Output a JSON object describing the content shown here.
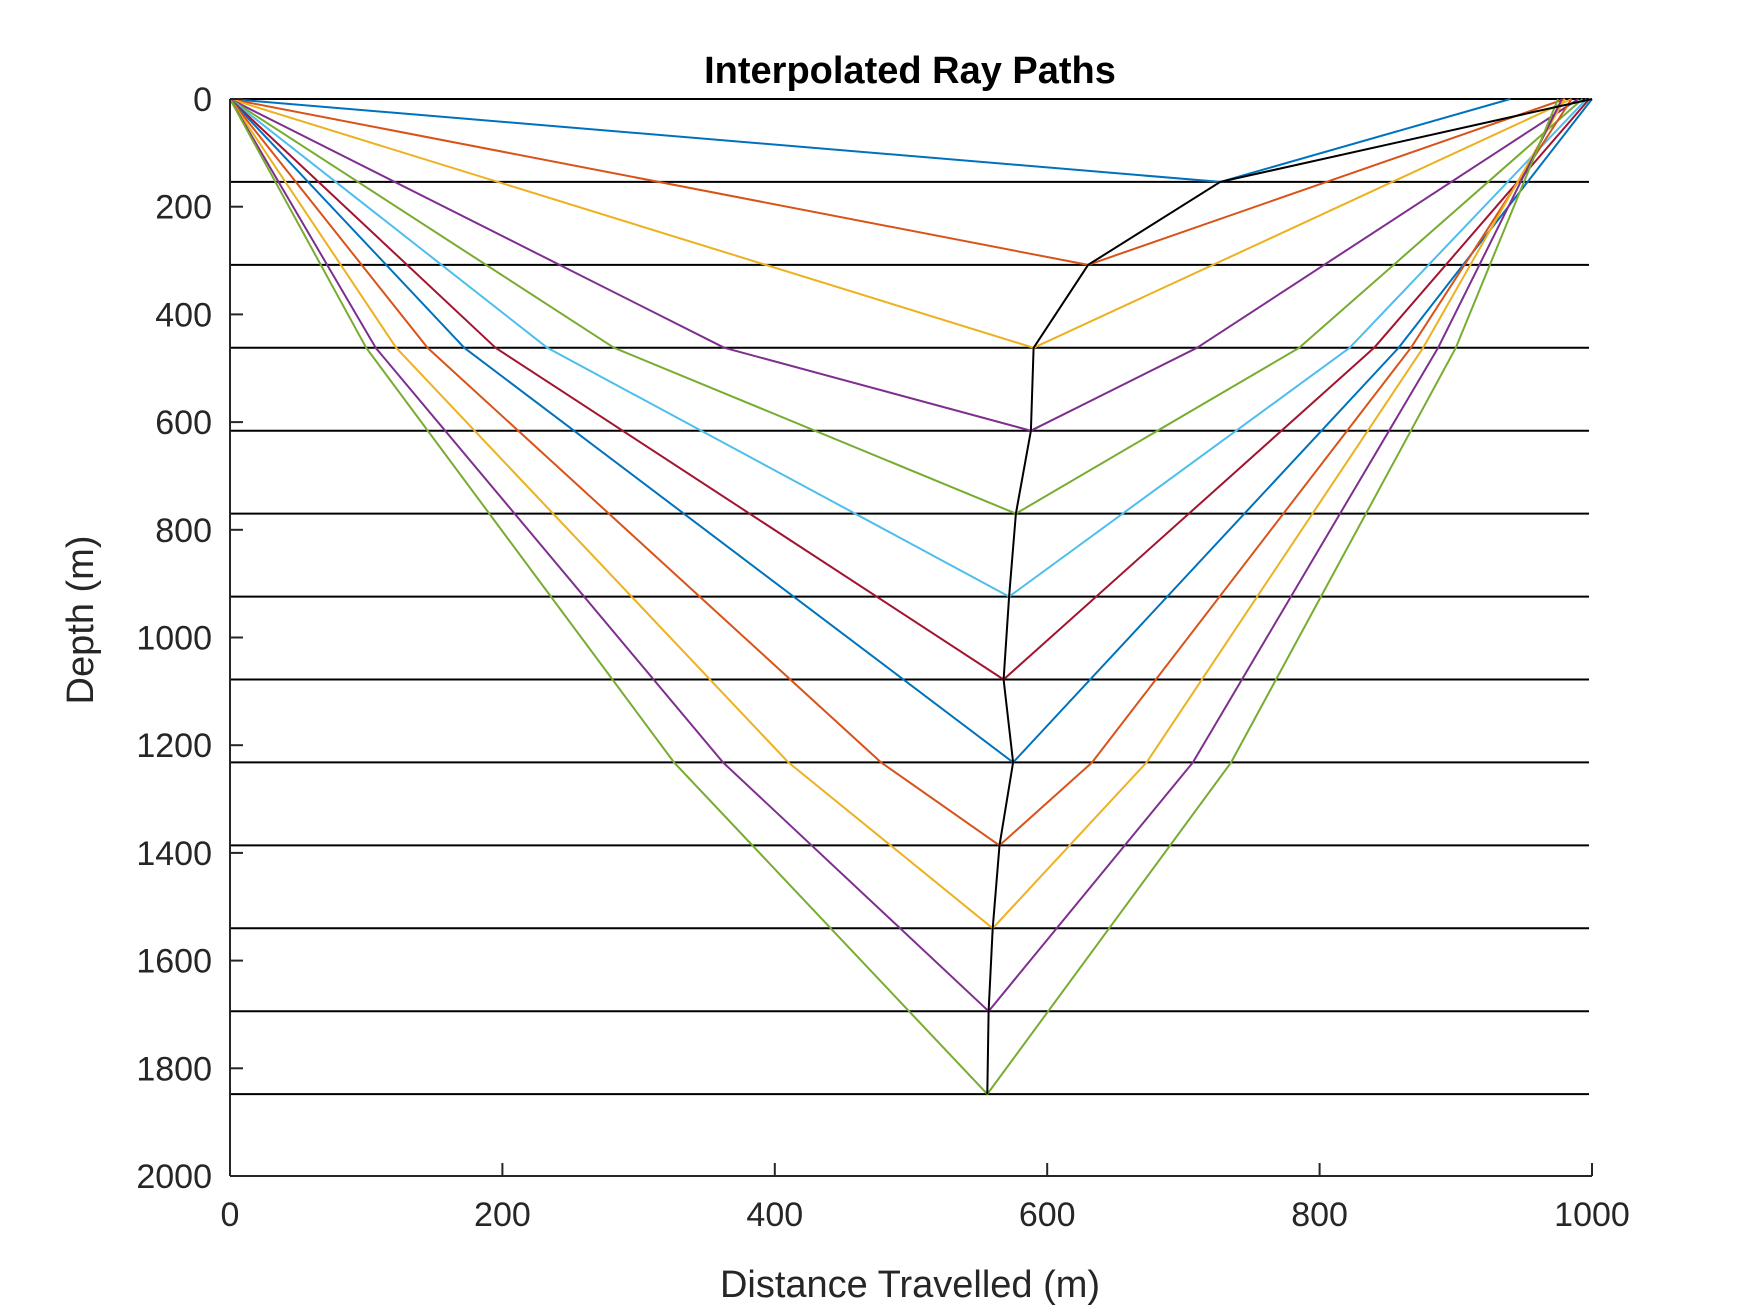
{
  "chart_data": {
    "type": "line",
    "title": "Interpolated Ray Paths",
    "xlabel": "Distance Travelled (m)",
    "ylabel": "Depth (m)",
    "xlim": [
      0,
      1000
    ],
    "ylim": [
      0,
      2000
    ],
    "y_reversed": true,
    "xticks": [
      0,
      200,
      400,
      600,
      800,
      1000
    ],
    "yticks": [
      0,
      200,
      400,
      600,
      800,
      1000,
      1200,
      1400,
      1600,
      1800,
      2000
    ],
    "grid": false,
    "layer_depths": [
      0,
      154,
      308,
      462,
      616,
      770,
      924,
      1078,
      1232,
      1386,
      1540,
      1694,
      1848
    ],
    "reflection_points": {
      "color": "#000000",
      "points": [
        [
          1000,
          0
        ],
        [
          727,
          154
        ],
        [
          630,
          308
        ],
        [
          590,
          462
        ],
        [
          588,
          616
        ],
        [
          577,
          770
        ],
        [
          572,
          924
        ],
        [
          568,
          1078
        ],
        [
          575,
          1232
        ],
        [
          565,
          1386
        ],
        [
          560,
          1540
        ],
        [
          557,
          1694
        ],
        [
          556,
          1848
        ]
      ]
    },
    "series": [
      {
        "color": "#0072BD",
        "points": [
          [
            0,
            0
          ],
          [
            727,
            154
          ],
          [
            940,
            0
          ]
        ]
      },
      {
        "color": "#D95319",
        "points": [
          [
            0,
            0
          ],
          [
            630,
            308
          ],
          [
            980,
            0
          ]
        ]
      },
      {
        "color": "#EDB120",
        "points": [
          [
            0,
            0
          ],
          [
            590,
            462
          ],
          [
            985,
            0
          ]
        ]
      },
      {
        "color": "#7E2F8E",
        "points": [
          [
            0,
            0
          ],
          [
            363,
            462
          ],
          [
            588,
            616
          ],
          [
            710,
            462
          ],
          [
            990,
            0
          ]
        ]
      },
      {
        "color": "#77AC30",
        "points": [
          [
            0,
            0
          ],
          [
            282,
            462
          ],
          [
            577,
            770
          ],
          [
            785,
            462
          ],
          [
            993,
            0
          ]
        ]
      },
      {
        "color": "#4DBEEE",
        "points": [
          [
            0,
            0
          ],
          [
            233,
            462
          ],
          [
            572,
            924
          ],
          [
            822,
            462
          ],
          [
            996,
            0
          ]
        ]
      },
      {
        "color": "#A2142F",
        "points": [
          [
            0,
            0
          ],
          [
            195,
            462
          ],
          [
            568,
            1078
          ],
          [
            840,
            462
          ],
          [
            998,
            0
          ]
        ]
      },
      {
        "color": "#0072BD",
        "points": [
          [
            0,
            0
          ],
          [
            172,
            462
          ],
          [
            575,
            1232
          ],
          [
            858,
            462
          ],
          [
            1000,
            0
          ]
        ]
      },
      {
        "color": "#D95319",
        "points": [
          [
            0,
            0
          ],
          [
            145,
            462
          ],
          [
            478,
            1232
          ],
          [
            565,
            1386
          ],
          [
            633,
            1232
          ],
          [
            867,
            462
          ],
          [
            985,
            0
          ]
        ]
      },
      {
        "color": "#EDB120",
        "points": [
          [
            0,
            0
          ],
          [
            122,
            462
          ],
          [
            410,
            1232
          ],
          [
            560,
            1540
          ],
          [
            673,
            1232
          ],
          [
            876,
            462
          ],
          [
            980,
            0
          ]
        ]
      },
      {
        "color": "#7E2F8E",
        "points": [
          [
            0,
            0
          ],
          [
            107,
            462
          ],
          [
            362,
            1232
          ],
          [
            557,
            1694
          ],
          [
            707,
            1232
          ],
          [
            887,
            462
          ],
          [
            978,
            0
          ]
        ]
      },
      {
        "color": "#77AC30",
        "points": [
          [
            0,
            0
          ],
          [
            100,
            462
          ],
          [
            326,
            1232
          ],
          [
            556,
            1848
          ],
          [
            735,
            1232
          ],
          [
            900,
            462
          ],
          [
            975,
            0
          ]
        ]
      }
    ]
  }
}
